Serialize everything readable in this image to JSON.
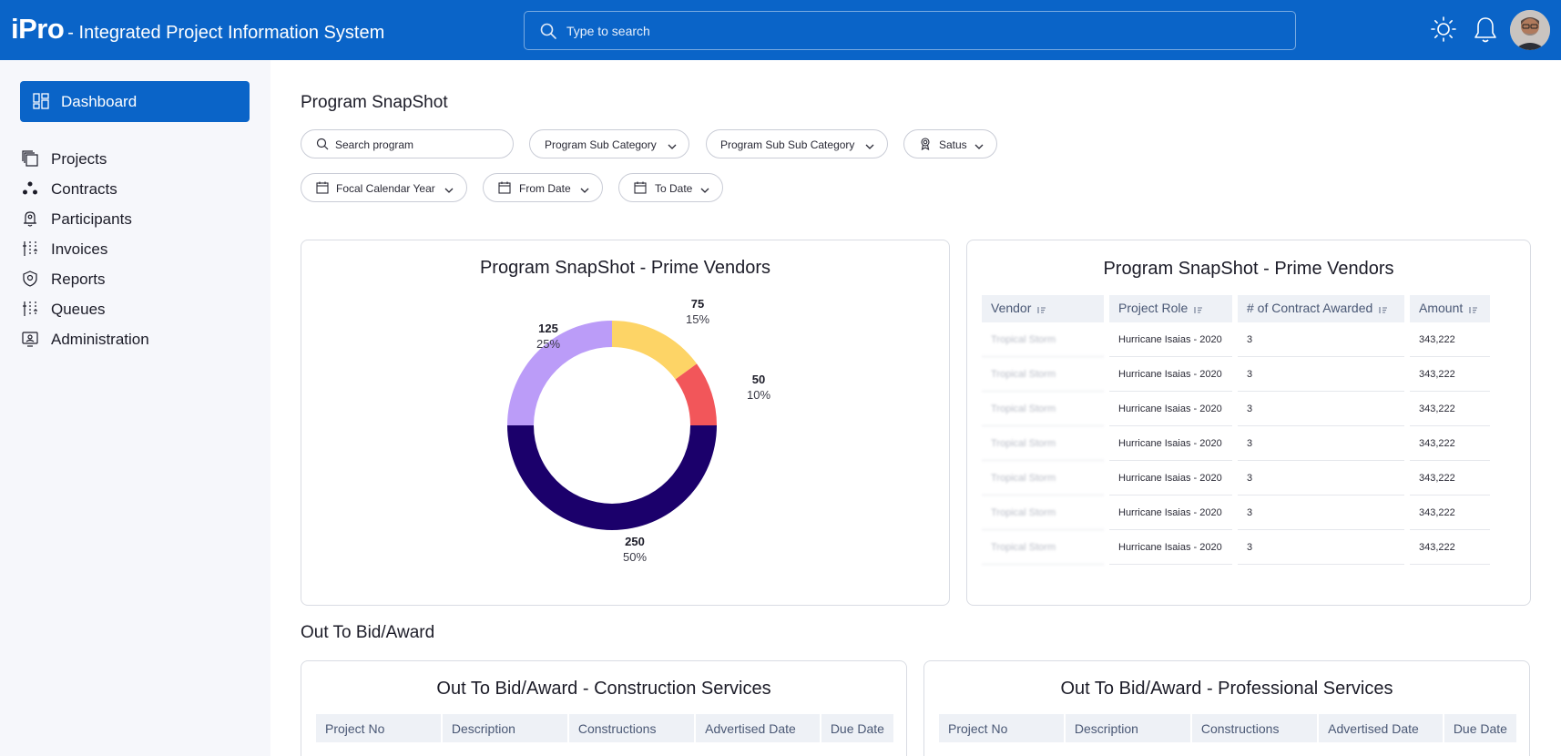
{
  "header": {
    "logo": "iPro",
    "subtitle": "- Integrated Project Information System",
    "search_placeholder": "Type to search",
    "icons": [
      "sun-icon",
      "bell-icon"
    ]
  },
  "sidebar": {
    "active": {
      "label": "Dashboard",
      "icon": "dashboard-icon"
    },
    "items": [
      {
        "label": "Projects",
        "icon": "projects-icon"
      },
      {
        "label": "Contracts",
        "icon": "contracts-icon"
      },
      {
        "label": "Participants",
        "icon": "participants-icon"
      },
      {
        "label": "Invoices",
        "icon": "invoices-icon"
      },
      {
        "label": "Reports",
        "icon": "reports-icon"
      },
      {
        "label": "Queues",
        "icon": "queues-icon"
      },
      {
        "label": "Administration",
        "icon": "administration-icon"
      }
    ]
  },
  "snapshot": {
    "title": "Program SnapShot",
    "filters": {
      "search_placeholder": "Search program",
      "sub_category": "Program Sub Category",
      "sub_sub_category": "Program Sub Sub Category",
      "status": "Satus",
      "focal_year": "Focal Calendar Year",
      "from_date": "From Date",
      "to_date": "To Date"
    },
    "donut_card": {
      "title": "Program SnapShot - Prime Vendors",
      "labels": [
        {
          "value": "75",
          "pct": "15%"
        },
        {
          "value": "50",
          "pct": "10%"
        },
        {
          "value": "250",
          "pct": "50%"
        },
        {
          "value": "125",
          "pct": "25%"
        }
      ]
    },
    "table_card": {
      "title": "Program SnapShot - Prime Vendors",
      "columns": [
        "Vendor",
        "Project Role",
        "# of Contract Awarded",
        "Amount"
      ],
      "rows": [
        [
          "Tropical Storm",
          "Hurricane Isaias - 2020",
          "3",
          "343,222"
        ],
        [
          "Tropical Storm",
          "Hurricane Isaias - 2020",
          "3",
          "343,222"
        ],
        [
          "Tropical Storm",
          "Hurricane Isaias - 2020",
          "3",
          "343,222"
        ],
        [
          "Tropical Storm",
          "Hurricane Isaias - 2020",
          "3",
          "343,222"
        ],
        [
          "Tropical Storm",
          "Hurricane Isaias - 2020",
          "3",
          "343,222"
        ],
        [
          "Tropical Storm",
          "Hurricane Isaias - 2020",
          "3",
          "343,222"
        ],
        [
          "Tropical Storm",
          "Hurricane Isaias - 2020",
          "3",
          "343,222"
        ]
      ]
    }
  },
  "bid": {
    "title": "Out To Bid/Award",
    "construction": {
      "title": "Out To Bid/Award - Construction Services",
      "columns": [
        "Project No",
        "Description",
        "Constructions",
        "Advertised Date",
        "Due Date"
      ]
    },
    "professional": {
      "title": "Out To Bid/Award - Professional Services",
      "columns": [
        "Project No",
        "Description",
        "Constructions",
        "Advertised Date",
        "Due Date"
      ]
    }
  },
  "chart_data": {
    "type": "pie",
    "donut": true,
    "title": "Program SnapShot - Prime Vendors",
    "categories": [
      "",
      "",
      "",
      ""
    ],
    "values": [
      75,
      50,
      250,
      125
    ],
    "percent": [
      15,
      10,
      50,
      25
    ],
    "colors": [
      "#fdd466",
      "#f2565a",
      "#1b006b",
      "#bb9cf8"
    ]
  }
}
